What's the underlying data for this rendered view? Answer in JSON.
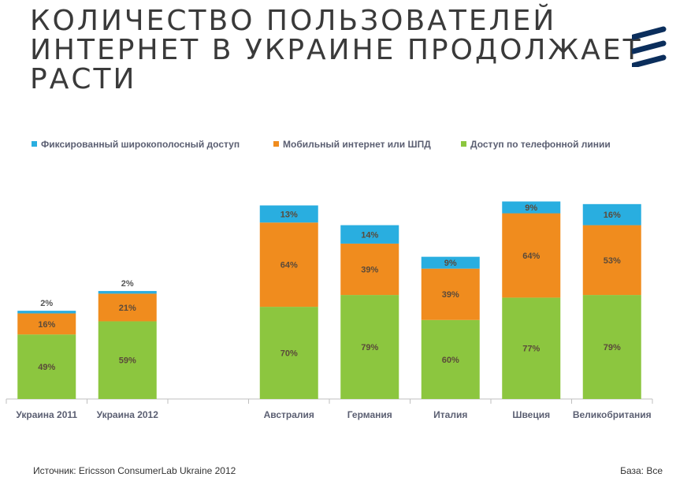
{
  "header": {
    "title_lines": [
      "КОЛИЧЕСТВО ПОЛЬЗОВАТЕЛЕЙ",
      "ИНТЕРНЕТ В УКРАИНЕ ПРОДОЛЖАЕТ",
      "РАСТИ"
    ]
  },
  "logo": {
    "icon": "ericsson-logo-icon",
    "color": "#0b2e5c"
  },
  "chart_data": {
    "type": "bar",
    "stacked": true,
    "categories": [
      "Украина 2011",
      "Украина 2012",
      "",
      "Австралия",
      "Германия",
      "Италия",
      "Швеция",
      "Великобритания"
    ],
    "series": [
      {
        "name": "Доступ по телефонной линии",
        "color": "#8cc63f",
        "values": [
          49,
          59,
          null,
          70,
          79,
          60,
          77,
          79
        ]
      },
      {
        "name": "Мобильный интернет или ШПД",
        "color": "#f08c1e",
        "values": [
          16,
          21,
          null,
          64,
          39,
          39,
          64,
          53
        ]
      },
      {
        "name": "Фиксированный широкополосный доступ",
        "color": "#29aee0",
        "values": [
          2,
          2,
          null,
          13,
          14,
          9,
          9,
          16
        ]
      }
    ],
    "labels_inside": true,
    "legend": "top"
  },
  "legend_order": [
    2,
    1,
    0
  ],
  "footer": {
    "source": "Источник: Ericsson ConsumerLab Ukraine 2012",
    "base": "База: Все"
  }
}
